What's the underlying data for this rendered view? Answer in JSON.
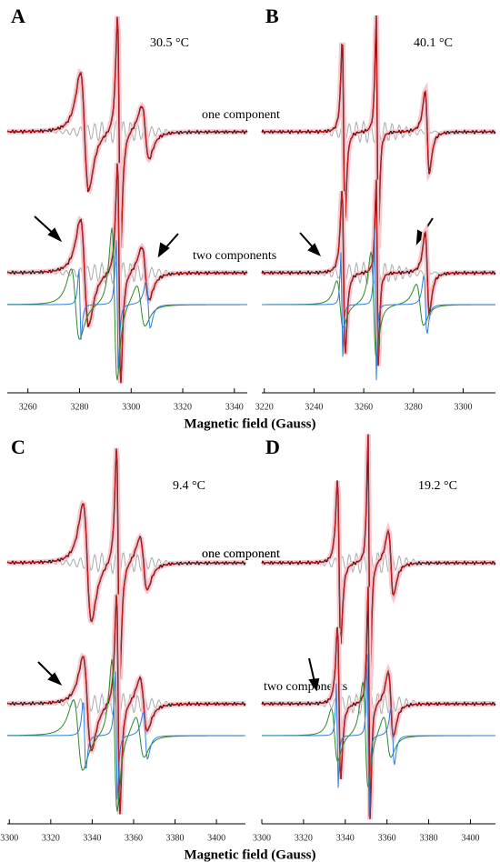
{
  "chart_data": [
    {
      "type": "line",
      "title": "A",
      "subtitle": "30.5 °C",
      "annotations": [
        "one component",
        "two components"
      ],
      "xlabel": "Magnetic field (Gauss)",
      "xlim": [
        3252,
        3345
      ],
      "xticks": [
        3260,
        3280,
        3300,
        3320,
        3340
      ]
    },
    {
      "type": "line",
      "title": "B",
      "subtitle": "40.1 °C",
      "annotations": [],
      "xlabel": "Magnetic field (Gauss)",
      "xlim": [
        3219,
        3313
      ],
      "xticks": [
        3220,
        3240,
        3260,
        3280,
        3300
      ]
    },
    {
      "type": "line",
      "title": "C",
      "subtitle": "9.4 °C",
      "annotations": [
        "one component"
      ],
      "xlabel": "Magnetic field (Gauss)",
      "xlim": [
        3299,
        3414
      ],
      "xticks": [
        3300,
        3320,
        3340,
        3360,
        3380,
        3400
      ]
    },
    {
      "type": "line",
      "title": "D",
      "subtitle": "19.2 °C",
      "annotations": [
        "one component",
        "two components"
      ],
      "xlabel": "Magnetic field (Gauss)",
      "xlim": [
        3300,
        3412
      ],
      "xticks": [
        3300,
        3320,
        3340,
        3360,
        3380,
        3400
      ]
    }
  ]
}
